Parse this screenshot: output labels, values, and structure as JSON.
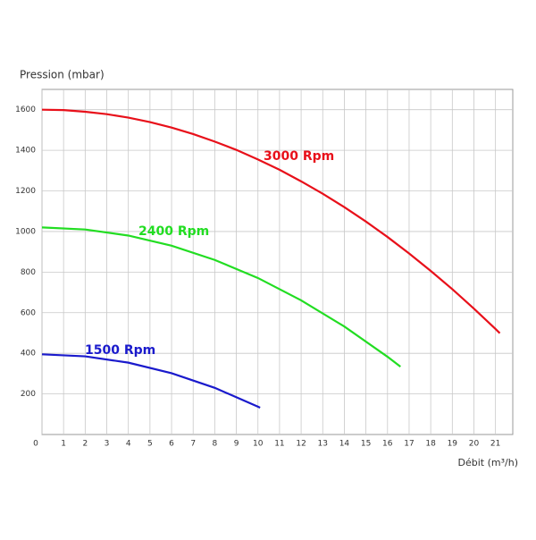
{
  "chart_data": {
    "type": "line",
    "y_label": "Pression (mbar)",
    "x_label": "Débit (m³/h)",
    "xlim": [
      0,
      21.8
    ],
    "ylim": [
      0,
      1700
    ],
    "xticks": [
      0,
      1,
      2,
      3,
      4,
      5,
      6,
      7,
      8,
      9,
      10,
      11,
      12,
      13,
      14,
      15,
      16,
      17,
      18,
      19,
      20,
      21
    ],
    "yticks": [
      200,
      400,
      600,
      800,
      1000,
      1200,
      1400,
      1600
    ],
    "grid": true,
    "series": [
      {
        "name": "3000 Rpm",
        "color": "#e8101a",
        "x": [
          0,
          1,
          2,
          3,
          4,
          5,
          6,
          7,
          8,
          9,
          10,
          11,
          12,
          13,
          14,
          15,
          16,
          17,
          18,
          19,
          20,
          21,
          21.2
        ],
        "values": [
          1600,
          1598,
          1590,
          1578,
          1561,
          1539,
          1512,
          1480,
          1443,
          1402,
          1355,
          1304,
          1247,
          1186,
          1120,
          1049,
          973,
          892,
          806,
          716,
          620,
          520,
          499
        ]
      },
      {
        "name": "2400 Rpm",
        "color": "#22dd22",
        "x": [
          0,
          2,
          4,
          6,
          8,
          10,
          12,
          14,
          16,
          16.6
        ],
        "values": [
          1020,
          1010,
          980,
          930,
          860,
          771,
          661,
          532,
          383,
          334
        ]
      },
      {
        "name": "1500 Rpm",
        "color": "#1a1acc",
        "x": [
          0,
          2,
          4,
          6,
          8,
          10,
          10.1
        ],
        "values": [
          395,
          385,
          354,
          302,
          230,
          137,
          132
        ]
      }
    ]
  }
}
